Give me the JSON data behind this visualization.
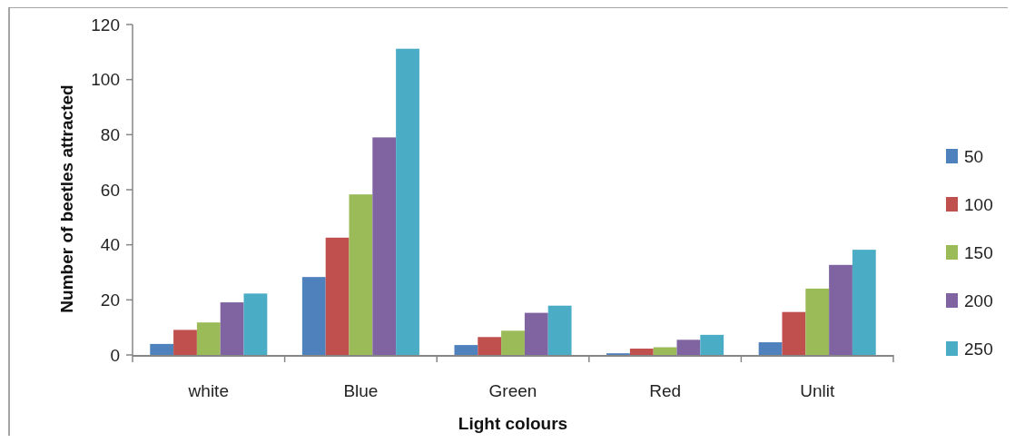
{
  "chart_data": {
    "type": "bar",
    "xlabel": "Light colours",
    "ylabel": "Number of beetles attracted",
    "categories": [
      "white",
      "Blue",
      "Green",
      "Red",
      "Unlit"
    ],
    "series": [
      {
        "name": "50",
        "color": "#4f81bd",
        "values": [
          4.0,
          28.3,
          3.6,
          0.6,
          4.6
        ]
      },
      {
        "name": "100",
        "color": "#c0504d",
        "values": [
          9.1,
          42.6,
          6.5,
          2.3,
          15.6
        ]
      },
      {
        "name": "150",
        "color": "#9bbb59",
        "values": [
          11.8,
          58.3,
          8.8,
          2.8,
          24.1
        ]
      },
      {
        "name": "200",
        "color": "#8064a2",
        "values": [
          19.1,
          79.0,
          15.3,
          5.5,
          32.7
        ]
      },
      {
        "name": "250",
        "color": "#4bacc6",
        "values": [
          22.3,
          111.2,
          17.9,
          7.3,
          38.2
        ]
      }
    ],
    "ylim": [
      0,
      120
    ],
    "yticks": [
      0,
      20,
      40,
      60,
      80,
      100,
      120
    ],
    "grid": false,
    "legend": "right"
  }
}
